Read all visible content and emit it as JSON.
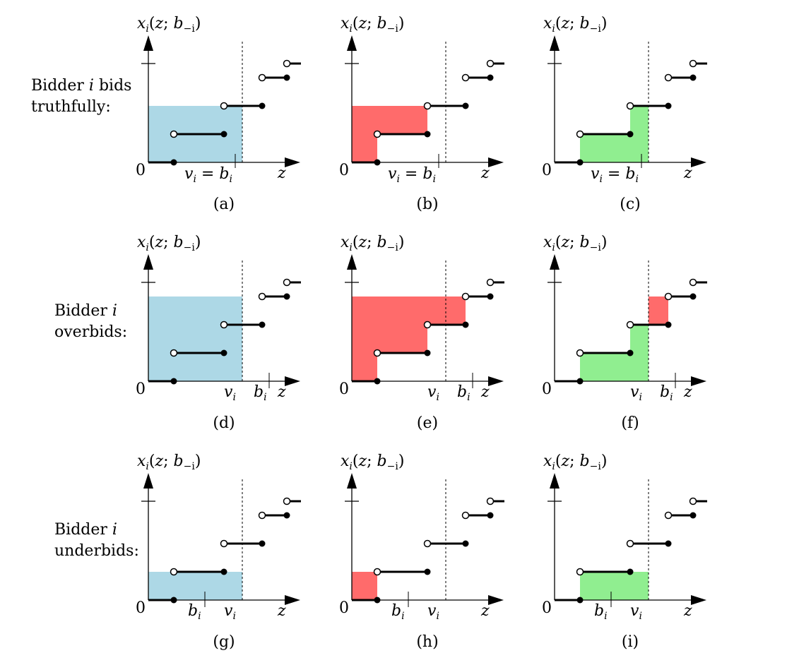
{
  "axis": {
    "y_label_main": "x",
    "y_label_sub": "i",
    "y_label_args": "(z; b",
    "y_label_args_sub": "−i",
    "y_label_close": ")",
    "x_label": "z",
    "origin": "0"
  },
  "rows": [
    {
      "label_lines": [
        "Bidder i bids",
        "truthfully:"
      ],
      "bid_position": "truthful",
      "panels": [
        {
          "caption": "(a)",
          "fill": "#add8e6",
          "shade": "value"
        },
        {
          "caption": "(b)",
          "fill": "#ff6b6b",
          "shade": "payment"
        },
        {
          "caption": "(c)",
          "fill": "#90ee90",
          "shade": "utility"
        }
      ]
    },
    {
      "label_lines": [
        "Bidder i",
        "overbids:"
      ],
      "bid_position": "over",
      "panels": [
        {
          "caption": "(d)",
          "fill": "#add8e6",
          "shade": "value"
        },
        {
          "caption": "(e)",
          "fill": "#ff6b6b",
          "shade": "payment"
        },
        {
          "caption": "(f)",
          "fill": "#90ee90",
          "shade": "utility"
        }
      ]
    },
    {
      "label_lines": [
        "Bidder i",
        "underbids:"
      ],
      "bid_position": "under",
      "panels": [
        {
          "caption": "(g)",
          "fill": "#add8e6",
          "shade": "value"
        },
        {
          "caption": "(h)",
          "fill": "#ff6b6b",
          "shade": "payment"
        },
        {
          "caption": "(i)",
          "fill": "#90ee90",
          "shade": "utility"
        }
      ]
    }
  ],
  "tick_labels": {
    "truthful": "v_i = b_i",
    "v": "v",
    "b": "b",
    "sub": "i"
  }
}
